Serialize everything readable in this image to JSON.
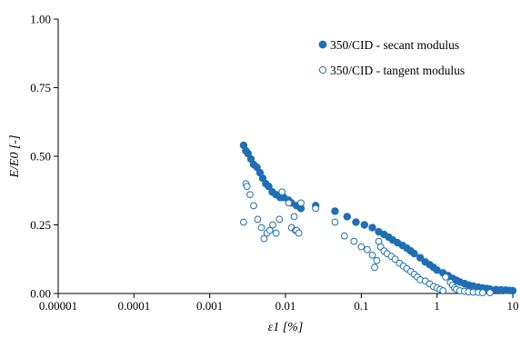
{
  "chart_data": {
    "type": "scatter",
    "title": "",
    "xlabel": "ε1 [%]",
    "ylabel": "E/E0 [-]",
    "xscale": "log",
    "xlim": [
      1e-05,
      10
    ],
    "ylim": [
      0,
      1
    ],
    "x_ticks": [
      "0.00001",
      "0.0001",
      "0.001",
      "0.01",
      "0.1",
      "1",
      "10"
    ],
    "y_ticks": [
      "0.00",
      "0.25",
      "0.50",
      "0.75",
      "1.00"
    ],
    "grid": false,
    "legend_position": "top-right",
    "colors": {
      "series": "#1f6fb5",
      "axis": "#000000"
    },
    "series": [
      {
        "name": "350/CID - secant modulus",
        "marker": "filled-circle",
        "x": [
          0.0028,
          0.003,
          0.0032,
          0.0035,
          0.0038,
          0.0042,
          0.0046,
          0.005,
          0.0055,
          0.006,
          0.0067,
          0.0075,
          0.0085,
          0.0095,
          0.011,
          0.012,
          0.014,
          0.016,
          0.025,
          0.045,
          0.065,
          0.085,
          0.11,
          0.14,
          0.17,
          0.2,
          0.23,
          0.26,
          0.3,
          0.35,
          0.4,
          0.45,
          0.5,
          0.6,
          0.7,
          0.8,
          0.9,
          1.0,
          1.2,
          1.4,
          1.6,
          1.8,
          2.0,
          2.3,
          2.6,
          3.0,
          3.5,
          4.0,
          4.5,
          5.0,
          6.0,
          7.0,
          8.0,
          9.0,
          10.0
        ],
        "y": [
          0.54,
          0.52,
          0.51,
          0.49,
          0.47,
          0.46,
          0.44,
          0.42,
          0.4,
          0.39,
          0.37,
          0.36,
          0.35,
          0.35,
          0.34,
          0.33,
          0.32,
          0.31,
          0.32,
          0.3,
          0.28,
          0.26,
          0.25,
          0.24,
          0.225,
          0.215,
          0.205,
          0.195,
          0.185,
          0.175,
          0.165,
          0.155,
          0.145,
          0.13,
          0.115,
          0.105,
          0.095,
          0.085,
          0.075,
          0.065,
          0.055,
          0.048,
          0.042,
          0.036,
          0.031,
          0.027,
          0.023,
          0.02,
          0.018,
          0.016,
          0.014,
          0.013,
          0.012,
          0.011,
          0.01
        ]
      },
      {
        "name": "350/CID - tangent modulus",
        "marker": "open-circle",
        "x": [
          0.0028,
          0.003,
          0.0031,
          0.0034,
          0.0038,
          0.0043,
          0.0048,
          0.0052,
          0.0057,
          0.0062,
          0.0068,
          0.0075,
          0.0083,
          0.009,
          0.011,
          0.012,
          0.013,
          0.0135,
          0.014,
          0.015,
          0.016,
          0.025,
          0.045,
          0.06,
          0.08,
          0.1,
          0.12,
          0.14,
          0.15,
          0.16,
          0.17,
          0.18,
          0.2,
          0.22,
          0.25,
          0.28,
          0.32,
          0.36,
          0.4,
          0.45,
          0.5,
          0.55,
          0.6,
          0.7,
          0.8,
          0.9,
          1.0,
          1.1,
          1.2,
          1.3,
          1.5,
          1.6,
          1.7,
          1.8,
          2.0,
          2.3,
          2.6,
          3.0,
          3.5,
          4.0,
          5.0
        ],
        "y": [
          0.26,
          0.4,
          0.39,
          0.36,
          0.32,
          0.27,
          0.24,
          0.2,
          0.22,
          0.23,
          0.25,
          0.22,
          0.27,
          0.37,
          0.33,
          0.24,
          0.28,
          0.23,
          0.23,
          0.22,
          0.33,
          0.31,
          0.26,
          0.21,
          0.19,
          0.17,
          0.16,
          0.14,
          0.095,
          0.12,
          0.19,
          0.17,
          0.155,
          0.145,
          0.135,
          0.125,
          0.11,
          0.1,
          0.09,
          0.08,
          0.07,
          0.06,
          0.05,
          0.045,
          0.035,
          0.025,
          0.02,
          0.015,
          0.01,
          0.06,
          0.04,
          0.03,
          0.02,
          0.015,
          0.01,
          0.008,
          0.006,
          0.005,
          0.004,
          0.003,
          0.003
        ]
      }
    ]
  }
}
